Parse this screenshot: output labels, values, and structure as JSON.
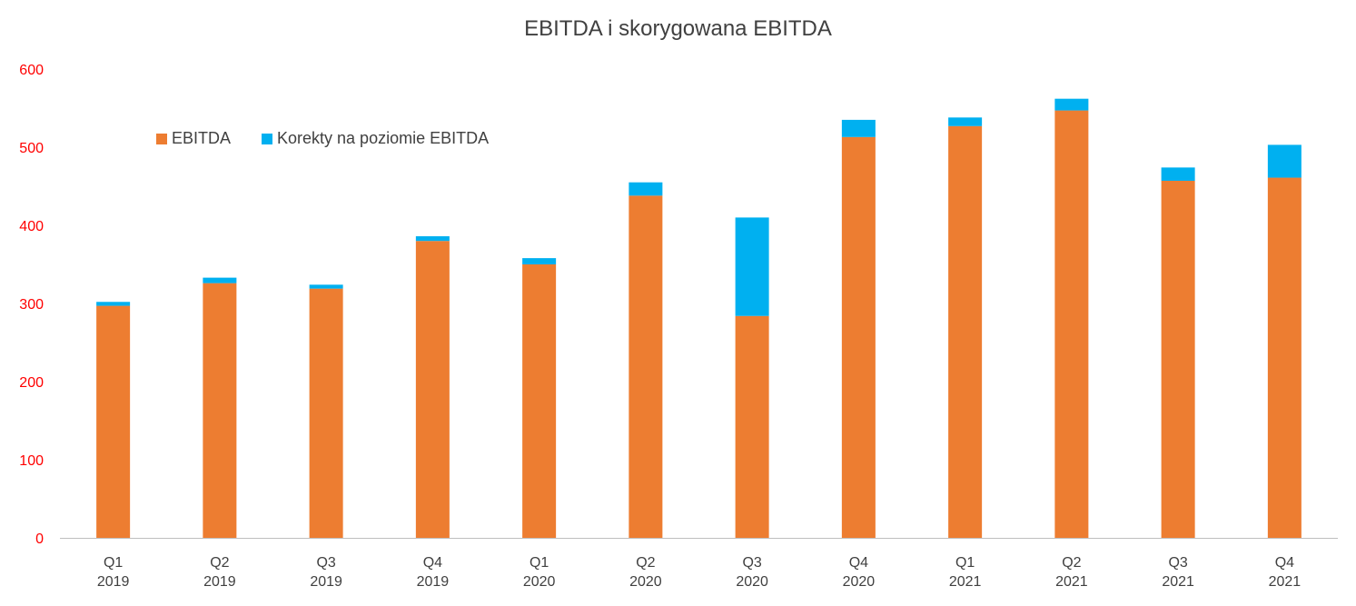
{
  "chart_data": {
    "type": "bar",
    "stacked": true,
    "title": "EBITDA i skorygowana EBITDA",
    "xlabel": "",
    "ylabel": "",
    "ylim": [
      0,
      600
    ],
    "yticks": [
      0,
      100,
      200,
      300,
      400,
      500,
      600
    ],
    "grid": false,
    "legend_position": "top-left",
    "categories": [
      [
        "Q1",
        "2019"
      ],
      [
        "Q2",
        "2019"
      ],
      [
        "Q3",
        "2019"
      ],
      [
        "Q4",
        "2019"
      ],
      [
        "Q1",
        "2020"
      ],
      [
        "Q2",
        "2020"
      ],
      [
        "Q3",
        "2020"
      ],
      [
        "Q4",
        "2020"
      ],
      [
        "Q1",
        "2021"
      ],
      [
        "Q2",
        "2021"
      ],
      [
        "Q3",
        "2021"
      ],
      [
        "Q4",
        "2021"
      ]
    ],
    "series": [
      {
        "name": "EBITDA",
        "color": "#ED7D31",
        "values": [
          297,
          326,
          319,
          380,
          350,
          438,
          284,
          513,
          527,
          547,
          457,
          461
        ]
      },
      {
        "name": "Korekty na poziomie EBITDA",
        "color": "#00B0F0",
        "values": [
          5,
          7,
          5,
          6,
          8,
          17,
          126,
          22,
          11,
          15,
          17,
          42
        ]
      }
    ],
    "axis_tick_color": "#FF0000"
  }
}
